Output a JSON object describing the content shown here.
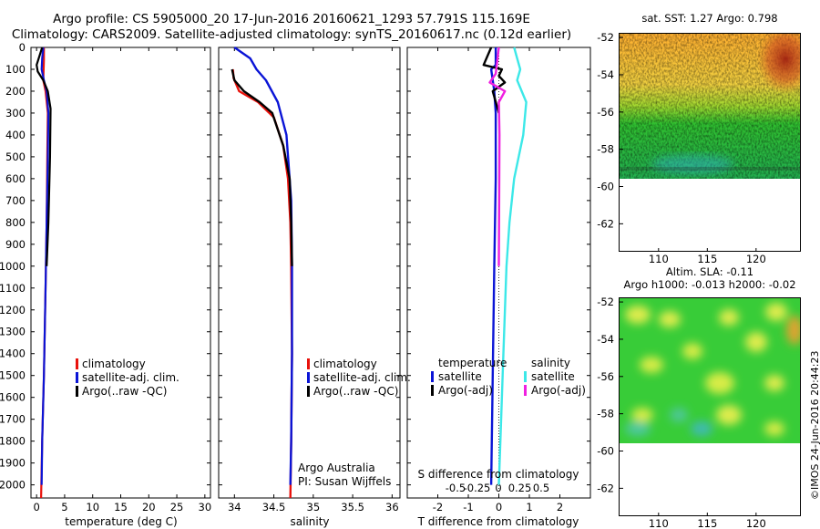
{
  "header": {
    "title_line1": "Argo profile: CS 5905000_20 17-Jun-2016 20160621_1293 57.791S 115.169E",
    "title_line2": "Climatology: CARS2009. Satellite-adjusted climatology: synTS_20160617.nc (0.12d earlier)"
  },
  "credit": "©IMOS 24-Jun-2016 20:44:23",
  "colors": {
    "climatology": "#e8120c",
    "satellite": "#0a14d6",
    "argo": "#000000",
    "salinity_satellite": "#3ce8e8",
    "salinity_argo": "#f020e0"
  },
  "chart_data": [
    {
      "type": "line",
      "name": "temperature-profile",
      "xlabel": "temperature (deg C)",
      "ylim": [
        2060,
        0
      ],
      "xlim": [
        -1,
        31
      ],
      "xticks": [
        0,
        5,
        10,
        15,
        20,
        25,
        30
      ],
      "yticks": [
        0,
        100,
        200,
        300,
        400,
        500,
        600,
        700,
        800,
        900,
        1000,
        1100,
        1200,
        1300,
        1400,
        1500,
        1600,
        1700,
        1800,
        1900,
        2000
      ],
      "legend": {
        "placement": "lower-center",
        "entries": [
          "climatology",
          "satellite-adj. clim.",
          "Argo(..raw -QC)"
        ]
      },
      "series": [
        {
          "name": "climatology",
          "color": "#e8120c",
          "points": [
            [
              1.3,
              0
            ],
            [
              1.3,
              60
            ],
            [
              1.25,
              100
            ],
            [
              1.2,
              150
            ],
            [
              1.6,
              200
            ],
            [
              2.0,
              300
            ],
            [
              1.9,
              500
            ],
            [
              1.8,
              800
            ],
            [
              1.6,
              1100
            ],
            [
              1.3,
              1500
            ],
            [
              1.0,
              1800
            ],
            [
              0.8,
              2060
            ]
          ]
        },
        {
          "name": "satellite-adj. clim.",
          "color": "#0a14d6",
          "points": [
            [
              1.2,
              0
            ],
            [
              1.0,
              50
            ],
            [
              0.9,
              100
            ],
            [
              1.3,
              150
            ],
            [
              1.8,
              200
            ],
            [
              2.1,
              300
            ],
            [
              2.0,
              500
            ],
            [
              1.8,
              800
            ],
            [
              1.6,
              1100
            ],
            [
              1.3,
              1500
            ],
            [
              1.0,
              1800
            ],
            [
              0.9,
              2000
            ]
          ]
        },
        {
          "name": "Argo(..raw -QC)",
          "color": "#000000",
          "points": [
            [
              1.0,
              0
            ],
            [
              0.0,
              80
            ],
            [
              0.2,
              110
            ],
            [
              1.2,
              150
            ],
            [
              2.0,
              200
            ],
            [
              2.5,
              280
            ],
            [
              2.4,
              500
            ],
            [
              2.1,
              800
            ],
            [
              1.8,
              1000
            ]
          ]
        }
      ]
    },
    {
      "type": "line",
      "name": "salinity-profile",
      "xlabel": "salinity",
      "ylim": [
        2060,
        0
      ],
      "xlim": [
        33.8,
        36.1
      ],
      "xticks": [
        34,
        34.5,
        35,
        35.5,
        36
      ],
      "legend": {
        "placement": "lower-center",
        "entries": [
          "climatology",
          "satellite-adj. clim.",
          "Argo(..raw -QC)"
        ]
      },
      "annotations": [
        "Argo Australia",
        "PI: Susan Wijffels"
      ],
      "series": [
        {
          "name": "climatology",
          "color": "#e8120c",
          "points": [
            [
              33.98,
              100
            ],
            [
              33.99,
              140
            ],
            [
              34.06,
              200
            ],
            [
              34.3,
              250
            ],
            [
              34.5,
              320
            ],
            [
              34.62,
              450
            ],
            [
              34.68,
              600
            ],
            [
              34.71,
              800
            ],
            [
              34.72,
              1000
            ],
            [
              34.73,
              1400
            ],
            [
              34.72,
              1800
            ],
            [
              34.71,
              2060
            ]
          ]
        },
        {
          "name": "satellite-adj. clim.",
          "color": "#0a14d6",
          "points": [
            [
              34.0,
              0
            ],
            [
              34.2,
              50
            ],
            [
              34.28,
              100
            ],
            [
              34.4,
              150
            ],
            [
              34.55,
              250
            ],
            [
              34.66,
              400
            ],
            [
              34.72,
              700
            ],
            [
              34.73,
              1000
            ],
            [
              34.73,
              1400
            ],
            [
              34.72,
              1800
            ],
            [
              34.71,
              2000
            ]
          ]
        },
        {
          "name": "Argo(..raw -QC)",
          "color": "#000000",
          "points": [
            [
              33.97,
              100
            ],
            [
              34.0,
              150
            ],
            [
              34.12,
              200
            ],
            [
              34.32,
              250
            ],
            [
              34.48,
              300
            ],
            [
              34.62,
              450
            ],
            [
              34.7,
              600
            ],
            [
              34.72,
              800
            ],
            [
              34.73,
              1000
            ]
          ]
        }
      ]
    },
    {
      "type": "line",
      "name": "difference-profile",
      "xlabel": "T difference from climatology",
      "xlim": [
        -3,
        3
      ],
      "xticks": [
        -2,
        -1,
        0,
        1,
        2
      ],
      "top_axis_label": "S difference from climatology",
      "top_xticks": [
        "-0.5",
        "-0.25",
        "0",
        "0.25",
        "0.5"
      ],
      "legend": {
        "placement": "lower-center",
        "headers": [
          "temperature",
          "salinity"
        ],
        "entries": [
          "satellite",
          "Argo(-adj)",
          "satellite",
          "Argo(-adj)"
        ]
      },
      "series": [
        {
          "name": "temperature satellite",
          "color": "#0a14d6",
          "points": [
            [
              -0.1,
              0
            ],
            [
              -0.1,
              80
            ],
            [
              -0.25,
              100
            ],
            [
              -0.2,
              150
            ],
            [
              -0.15,
              200
            ],
            [
              -0.1,
              300
            ],
            [
              -0.1,
              600
            ],
            [
              -0.15,
              1000
            ],
            [
              -0.2,
              1500
            ],
            [
              -0.25,
              2000
            ]
          ]
        },
        {
          "name": "temperature Argo(-adj)",
          "color": "#000000",
          "points": [
            [
              -0.25,
              0
            ],
            [
              -0.5,
              80
            ],
            [
              0.1,
              100
            ],
            [
              0.0,
              130
            ],
            [
              0.2,
              160
            ],
            [
              -0.2,
              200
            ],
            [
              0.0,
              300
            ]
          ]
        },
        {
          "name": "salinity satellite",
          "color": "#3ce8e8",
          "points": [
            [
              0.5,
              0
            ],
            [
              0.6,
              50
            ],
            [
              0.7,
              100
            ],
            [
              0.6,
              150
            ],
            [
              0.9,
              250
            ],
            [
              0.8,
              400
            ],
            [
              0.5,
              600
            ],
            [
              0.35,
              800
            ],
            [
              0.25,
              1000
            ],
            [
              0.15,
              1400
            ],
            [
              0.05,
              1800
            ],
            [
              0.0,
              2000
            ]
          ]
        },
        {
          "name": "salinity Argo(-adj)",
          "color": "#f020e0",
          "points": [
            [
              0.0,
              0
            ],
            [
              -0.1,
              120
            ],
            [
              -0.3,
              160
            ],
            [
              0.2,
              200
            ],
            [
              0.0,
              250
            ],
            [
              0.02,
              400
            ],
            [
              0.0,
              1000
            ]
          ]
        }
      ]
    },
    {
      "type": "heatmap",
      "name": "sst-map",
      "title": "sat. SST: 1.27 Argo: 0.798",
      "xticks": [
        110,
        115,
        120
      ],
      "yticks": [
        -52,
        -54,
        -56,
        -58,
        -60,
        -62
      ],
      "xlim": [
        106,
        124.5
      ],
      "ylim": [
        -63.5,
        -51.8
      ],
      "data_lat_range": [
        -60,
        -51.8
      ]
    },
    {
      "type": "heatmap",
      "name": "sla-map",
      "title_line1": "Altim. SLA: -0.11",
      "title_line2": "Argo h1000: -0.013 h2000: -0.02",
      "xticks": [
        110,
        115,
        120
      ],
      "yticks": [
        -52,
        -54,
        -56,
        -58,
        -60,
        -62
      ],
      "xlim": [
        106,
        124.5
      ],
      "ylim": [
        -63.5,
        -51.8
      ],
      "data_lat_range": [
        -60,
        -51.8
      ]
    }
  ]
}
